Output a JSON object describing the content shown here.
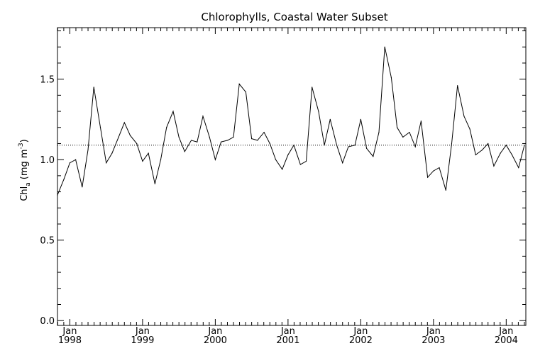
{
  "chart_data": {
    "type": "line",
    "title": "Chlorophylls, Coastal Water Subset",
    "ylabel": {
      "prefix": "Chl",
      "subscript": "a",
      "units_prefix": "(mg m",
      "units_exponent": "-3",
      "units_suffix": ")"
    },
    "xlabel": "",
    "ylim": [
      -0.03,
      1.82
    ],
    "xlim": [
      1997.83,
      2004.27
    ],
    "yticks": [
      {
        "value": 0.0,
        "label": "0.0"
      },
      {
        "value": 0.5,
        "label": "0.5"
      },
      {
        "value": 1.0,
        "label": "1.0"
      },
      {
        "value": 1.5,
        "label": "1.5"
      }
    ],
    "xticks": [
      {
        "value": 1998.0,
        "month": "Jan",
        "year": "1998"
      },
      {
        "value": 1999.0,
        "month": "Jan",
        "year": "1999"
      },
      {
        "value": 2000.0,
        "month": "Jan",
        "year": "2000"
      },
      {
        "value": 2001.0,
        "month": "Jan",
        "year": "2001"
      },
      {
        "value": 2002.0,
        "month": "Jan",
        "year": "2002"
      },
      {
        "value": 2003.0,
        "month": "Jan",
        "year": "2003"
      },
      {
        "value": 2004.0,
        "month": "Jan",
        "year": "2004"
      }
    ],
    "reference_line": {
      "y": 1.09,
      "style": "dotted"
    },
    "grid": false,
    "series": [
      {
        "x": [
          1997.83,
          1997.92,
          1998.0,
          1998.08,
          1998.17,
          1998.25,
          1998.33,
          1998.42,
          1998.5,
          1998.58,
          1998.67,
          1998.75,
          1998.83,
          1998.92,
          1999.0,
          1999.08,
          1999.17,
          1999.25,
          1999.33,
          1999.42,
          1999.5,
          1999.58,
          1999.67,
          1999.75,
          1999.83,
          1999.92,
          2000.0,
          2000.08,
          2000.17,
          2000.25,
          2000.33,
          2000.42,
          2000.5,
          2000.58,
          2000.67,
          2000.75,
          2000.83,
          2000.92,
          2001.0,
          2001.08,
          2001.17,
          2001.25,
          2001.33,
          2001.42,
          2001.5,
          2001.58,
          2001.67,
          2001.75,
          2001.83,
          2001.92,
          2002.0,
          2002.08,
          2002.17,
          2002.25,
          2002.33,
          2002.42,
          2002.5,
          2002.58,
          2002.67,
          2002.75,
          2002.83,
          2002.92,
          2003.0,
          2003.08,
          2003.17,
          2003.25,
          2003.33,
          2003.42,
          2003.5,
          2003.58,
          2003.67,
          2003.75,
          2003.83,
          2003.92,
          2004.0,
          2004.08,
          2004.17,
          2004.25
        ],
        "values": [
          0.78,
          0.88,
          0.98,
          1.0,
          0.83,
          1.06,
          1.45,
          1.2,
          0.98,
          1.04,
          1.14,
          1.23,
          1.15,
          1.1,
          0.99,
          1.04,
          0.85,
          1.0,
          1.2,
          1.3,
          1.14,
          1.05,
          1.12,
          1.11,
          1.27,
          1.14,
          1.0,
          1.11,
          1.12,
          1.14,
          1.47,
          1.42,
          1.13,
          1.12,
          1.17,
          1.1,
          1.0,
          0.94,
          1.03,
          1.09,
          0.97,
          0.99,
          1.45,
          1.3,
          1.09,
          1.25,
          1.09,
          0.98,
          1.08,
          1.09,
          1.25,
          1.07,
          1.02,
          1.17,
          1.7,
          1.51,
          1.2,
          1.14,
          1.17,
          1.08,
          1.24,
          0.89,
          0.93,
          0.95,
          0.81,
          1.1,
          1.46,
          1.27,
          1.19,
          1.03,
          1.06,
          1.1,
          0.96,
          1.04,
          1.09,
          1.03,
          0.95,
          1.09
        ]
      }
    ]
  }
}
